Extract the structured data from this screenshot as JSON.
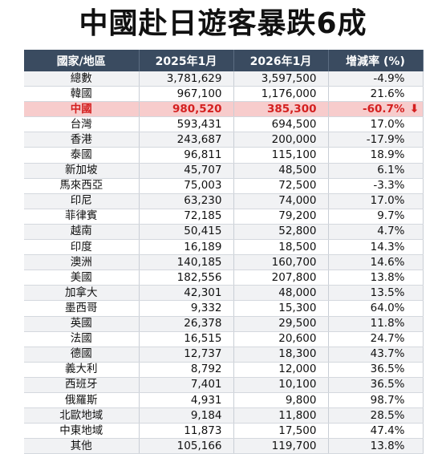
{
  "title": "中國赴日遊客暴跌6成",
  "table": {
    "headers": [
      "國家/地區",
      "2025年1月",
      "2026年1月",
      "增減率 (%)"
    ],
    "highlight_index": 2,
    "rows": [
      [
        "總數",
        "3,781,629",
        "3,597,500",
        "-4.9%"
      ],
      [
        "韓國",
        "967,100",
        "1,176,000",
        "21.6%"
      ],
      [
        "中國",
        "980,520",
        "385,300",
        "-60.7%"
      ],
      [
        "台灣",
        "593,431",
        "694,500",
        "17.0%"
      ],
      [
        "香港",
        "243,687",
        "200,000",
        "-17.9%"
      ],
      [
        "泰國",
        "96,811",
        "115,100",
        "18.9%"
      ],
      [
        "新加坡",
        "45,707",
        "48,500",
        "6.1%"
      ],
      [
        "馬來西亞",
        "75,003",
        "72,500",
        "-3.3%"
      ],
      [
        "印尼",
        "63,230",
        "74,000",
        "17.0%"
      ],
      [
        "菲律賓",
        "72,185",
        "79,200",
        "9.7%"
      ],
      [
        "越南",
        "50,415",
        "52,800",
        "4.7%"
      ],
      [
        "印度",
        "16,189",
        "18,500",
        "14.3%"
      ],
      [
        "澳洲",
        "140,185",
        "160,700",
        "14.6%"
      ],
      [
        "美國",
        "182,556",
        "207,800",
        "13.8%"
      ],
      [
        "加拿大",
        "42,301",
        "48,000",
        "13.5%"
      ],
      [
        "墨西哥",
        "9,332",
        "15,300",
        "64.0%"
      ],
      [
        "英國",
        "26,378",
        "29,500",
        "11.8%"
      ],
      [
        "法國",
        "16,515",
        "20,600",
        "24.7%"
      ],
      [
        "德國",
        "12,737",
        "18,300",
        "43.7%"
      ],
      [
        "義大利",
        "8,792",
        "12,000",
        "36.5%"
      ],
      [
        "西班牙",
        "7,401",
        "10,100",
        "36.5%"
      ],
      [
        "俄羅斯",
        "4,931",
        "9,800",
        "98.7%"
      ],
      [
        "北歐地域",
        "9,184",
        "11,800",
        "28.5%"
      ],
      [
        "中東地域",
        "11,873",
        "17,500",
        "47.4%"
      ],
      [
        "其他",
        "105,166",
        "119,700",
        "13.8%"
      ]
    ]
  },
  "colors": {
    "header_bg": "#3a4b60",
    "highlight_bg": "#f7cccc",
    "highlight_text": "#d42020"
  },
  "icons": {
    "highlight_arrow": "down-arrow-icon"
  }
}
